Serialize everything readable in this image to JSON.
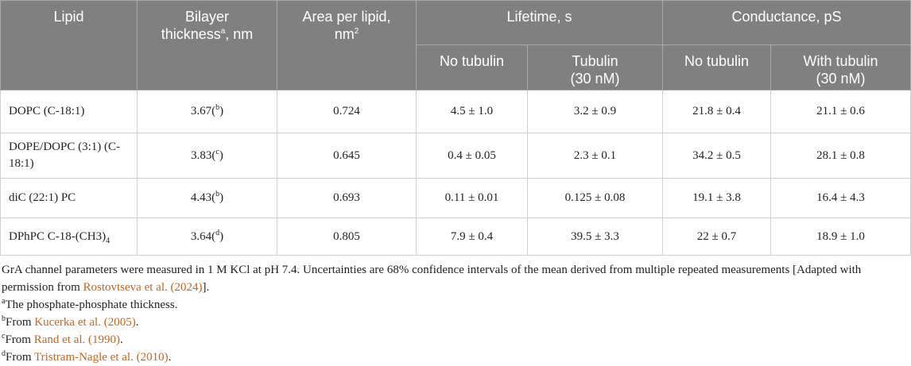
{
  "header": {
    "columns": [
      [
        [
          "Lipid"
        ]
      ],
      [
        [
          "Bilayer"
        ],
        [
          "thickness",
          {
            "sup": "a"
          },
          ", nm"
        ]
      ],
      [
        [
          "Area per lipid,"
        ],
        [
          "nm",
          {
            "sup": "2"
          }
        ]
      ]
    ],
    "groups": [
      [
        [
          "Lifetime, s"
        ]
      ],
      [
        [
          "Conductance, pS"
        ]
      ]
    ],
    "subcolumns": [
      [
        [
          "No tubulin"
        ]
      ],
      [
        [
          "Tubulin"
        ],
        [
          "(30 nM)"
        ]
      ],
      [
        [
          "No tubulin"
        ]
      ],
      [
        [
          "With tubulin"
        ],
        [
          "(30 nM)"
        ]
      ]
    ]
  },
  "rows": [
    [
      [
        "DOPC (C-18:1)"
      ],
      [
        "3.67(",
        {
          "sup": "b"
        },
        ")"
      ],
      [
        "0.724"
      ],
      [
        "4.5 ± 1.0"
      ],
      [
        "3.2 ± 0.9"
      ],
      [
        "21.8 ± 0.4"
      ],
      [
        "21.1 ± 0.6"
      ]
    ],
    [
      [
        "DOPE/DOPC (3:1) (C-18:1)"
      ],
      [
        "3.83(",
        {
          "sup": "c"
        },
        ")"
      ],
      [
        "0.645"
      ],
      [
        "0.4 ± 0.05"
      ],
      [
        "2.3 ± 0.1"
      ],
      [
        "34.2 ± 0.5"
      ],
      [
        "28.1 ± 0.8"
      ]
    ],
    [
      [
        "diC (22:1) PC"
      ],
      [
        "4.43(",
        {
          "sup": "b"
        },
        ")"
      ],
      [
        "0.693"
      ],
      [
        "0.11 ± 0.01"
      ],
      [
        "0.125 ± 0.08"
      ],
      [
        "19.1 ± 3.8"
      ],
      [
        "16.4 ± 4.3"
      ]
    ],
    [
      [
        "DPhPC C-18-(CH3)",
        {
          "sub": "4"
        }
      ],
      [
        "3.64(",
        {
          "sup": "d"
        },
        ")"
      ],
      [
        "0.805"
      ],
      [
        "7.9 ± 0.4"
      ],
      [
        "39.5 ± 3.3"
      ],
      [
        "22 ± 0.7"
      ],
      [
        "18.9 ± 1.0"
      ]
    ]
  ],
  "footnotes": [
    [
      "GrA channel parameters were measured in 1 M KCl at pH 7.4. Uncertainties are 68% confidence intervals of the mean derived from multiple repeated measurements [Adapted with permission from ",
      {
        "link": "Rostovtseva et al. (2024)"
      },
      "]."
    ],
    [
      {
        "sup": "a"
      },
      "The phosphate-phosphate thickness."
    ],
    [
      {
        "sup": "b"
      },
      "From ",
      {
        "link": "Kucerka et al. (2005)"
      },
      "."
    ],
    [
      {
        "sup": "c"
      },
      "From ",
      {
        "link": "Rand et al. (1990)"
      },
      "."
    ],
    [
      {
        "sup": "d"
      },
      "From ",
      {
        "link": "Tristram-Nagle et al. (2010)"
      },
      "."
    ]
  ]
}
